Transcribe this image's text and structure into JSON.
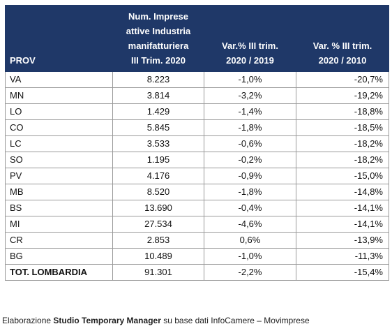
{
  "table": {
    "headers": {
      "prov": "PROV",
      "imprese": [
        "Num. Imprese",
        "attive Industria",
        "manifatturiera",
        "III Trim. 2020"
      ],
      "var1": [
        "Var.% III trim.",
        "2020 / 2019"
      ],
      "var2": [
        "Var. % III trim.",
        "2020 / 2010"
      ]
    },
    "rows": [
      {
        "prov": "VA",
        "imprese": "8.223",
        "var1": "-1,0%",
        "var2": "-20,7%"
      },
      {
        "prov": "MN",
        "imprese": "3.814",
        "var1": "-3,2%",
        "var2": "-19,2%"
      },
      {
        "prov": "LO",
        "imprese": "1.429",
        "var1": "-1,4%",
        "var2": "-18,8%"
      },
      {
        "prov": "CO",
        "imprese": "5.845",
        "var1": "-1,8%",
        "var2": "-18,5%"
      },
      {
        "prov": "LC",
        "imprese": "3.533",
        "var1": "-0,6%",
        "var2": "-18,2%"
      },
      {
        "prov": "SO",
        "imprese": "1.195",
        "var1": "-0,2%",
        "var2": "-18,2%"
      },
      {
        "prov": "PV",
        "imprese": "4.176",
        "var1": "-0,9%",
        "var2": "-15,0%"
      },
      {
        "prov": "MB",
        "imprese": "8.520",
        "var1": "-1,8%",
        "var2": "-14,8%"
      },
      {
        "prov": "BS",
        "imprese": "13.690",
        "var1": "-0,4%",
        "var2": "-14,1%"
      },
      {
        "prov": "MI",
        "imprese": "27.534",
        "var1": "-4,6%",
        "var2": "-14,1%"
      },
      {
        "prov": "CR",
        "imprese": "2.853",
        "var1": "0,6%",
        "var2": "-13,9%"
      },
      {
        "prov": "BG",
        "imprese": "10.489",
        "var1": "-1,0%",
        "var2": "-11,3%"
      }
    ],
    "total": {
      "prov": "TOT. LOMBARDIA",
      "imprese": "91.301",
      "var1": "-2,2%",
      "var2": "-15,4%"
    }
  },
  "caption": {
    "pre": "Elaborazione ",
    "bold": "Studio Temporary Manager",
    "post": " su base dati InfoCamere – Movimprese"
  },
  "colors": {
    "header_bg": "#1f3868",
    "header_text": "#ffffff",
    "border": "#9a9a9a"
  }
}
